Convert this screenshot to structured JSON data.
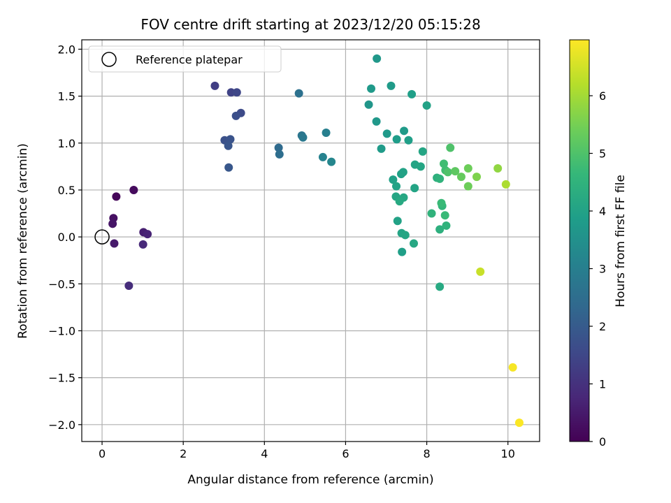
{
  "chart_data": {
    "type": "scatter",
    "title": "FOV centre drift starting at 2023/12/20 05:15:28",
    "xlabel": "Angular distance from reference (arcmin)",
    "ylabel": "Rotation from reference (arcmin)",
    "xlim": [
      -0.5,
      10.78
    ],
    "ylim": [
      -2.18,
      2.1
    ],
    "grid": true,
    "x_ticks": [
      0,
      2,
      4,
      6,
      8,
      10
    ],
    "x_tick_labels": [
      "0",
      "2",
      "4",
      "6",
      "8",
      "10"
    ],
    "y_ticks": [
      2.0,
      1.5,
      1.0,
      0.5,
      0.0,
      -0.5,
      -1.0,
      -1.5,
      -2.0
    ],
    "y_tick_labels": [
      "2.0",
      "1.5",
      "1.0",
      "0.5",
      "0.0",
      "−0.5",
      "−1.0",
      "−1.5",
      "−2.0"
    ],
    "legend": {
      "placement": "upper-left",
      "entries": [
        {
          "label": "Reference platepar",
          "marker": "open-circle"
        }
      ]
    },
    "reference_point": {
      "x": 0,
      "y": 0
    },
    "colorbar": {
      "label": "Hours from first FF file",
      "colormap": "viridis",
      "range": [
        0,
        6.97
      ],
      "ticks": [
        0,
        1,
        2,
        3,
        4,
        5,
        6
      ],
      "tick_labels": [
        "0",
        "1",
        "2",
        "3",
        "4",
        "5",
        "6"
      ]
    },
    "colormap_stops": [
      "#440154",
      "#482878",
      "#3e4989",
      "#31688e",
      "#26828e",
      "#1f9e89",
      "#35b779",
      "#6ece58",
      "#b5de2b",
      "#fde725"
    ],
    "series": [
      {
        "x": [
          0.35,
          0.78,
          0.28,
          0.26,
          0.3,
          1.02,
          1.12,
          1.01,
          0.66,
          2.78,
          3.18,
          3.32,
          3.42,
          3.3,
          3.02,
          3.16,
          3.11,
          3.12,
          4.35,
          4.37,
          4.85,
          4.92,
          4.95,
          5.52,
          5.44,
          5.65,
          6.77,
          6.63,
          7.12,
          7.63,
          8.0,
          6.57,
          6.76,
          7.02,
          7.44,
          7.26,
          7.55,
          6.88,
          7.9,
          7.37,
          7.42,
          7.71,
          7.85,
          7.17,
          7.25,
          7.7,
          7.24,
          7.43,
          7.33,
          7.28,
          7.38,
          7.47,
          7.68,
          7.39
        ],
        "y": [
          0.43,
          0.5,
          0.2,
          0.14,
          -0.07,
          0.05,
          0.03,
          -0.08,
          -0.52,
          1.61,
          1.54,
          1.54,
          1.32,
          1.29,
          1.03,
          1.04,
          0.97,
          0.74,
          0.95,
          0.88,
          1.53,
          1.08,
          1.06,
          1.11,
          0.85,
          0.8,
          1.9,
          1.58,
          1.61,
          1.52,
          1.4,
          1.41,
          1.23,
          1.1,
          1.13,
          1.04,
          1.03,
          0.94,
          0.91,
          0.67,
          0.69,
          0.77,
          0.75,
          0.61,
          0.54,
          0.52,
          0.43,
          0.42,
          0.38,
          0.17,
          0.04,
          0.02,
          -0.07,
          -0.16
        ],
        "hours": [
          0.1,
          0.2,
          0.3,
          0.4,
          0.5,
          0.6,
          0.7,
          0.8,
          0.9,
          1.3,
          1.4,
          1.5,
          1.6,
          1.7,
          1.75,
          1.8,
          1.85,
          1.9,
          2.4,
          2.5,
          2.6,
          2.7,
          2.8,
          3.0,
          3.1,
          3.2,
          3.7,
          3.75,
          3.8,
          3.9,
          4.0,
          3.65,
          3.7,
          3.75,
          3.8,
          3.85,
          3.9,
          3.8,
          4.1,
          3.95,
          4.0,
          4.05,
          4.1,
          3.95,
          4.0,
          4.05,
          4.1,
          4.15,
          4.2,
          4.0,
          4.05,
          4.1,
          4.15,
          3.9
        ]
      },
      {
        "x": [
          8.12,
          8.25,
          8.32,
          8.38,
          8.36,
          8.45,
          8.32,
          8.48,
          8.46,
          8.32,
          8.58,
          8.42,
          8.52,
          8.7,
          8.85,
          9.02,
          9.02,
          9.23,
          9.75,
          9.95,
          9.32,
          10.12,
          10.28
        ],
        "y": [
          0.25,
          0.63,
          0.62,
          0.33,
          0.36,
          0.23,
          0.08,
          0.12,
          0.71,
          -0.53,
          0.95,
          0.78,
          0.69,
          0.7,
          0.64,
          0.73,
          0.54,
          0.64,
          0.73,
          0.56,
          -0.37,
          -1.39,
          -1.98
        ],
        "hours": [
          4.5,
          4.4,
          4.5,
          4.6,
          4.7,
          4.7,
          4.4,
          4.5,
          4.8,
          4.2,
          5.0,
          4.8,
          5.0,
          5.2,
          5.3,
          5.4,
          5.4,
          5.6,
          5.8,
          6.1,
          6.4,
          6.9,
          6.95
        ]
      }
    ]
  }
}
